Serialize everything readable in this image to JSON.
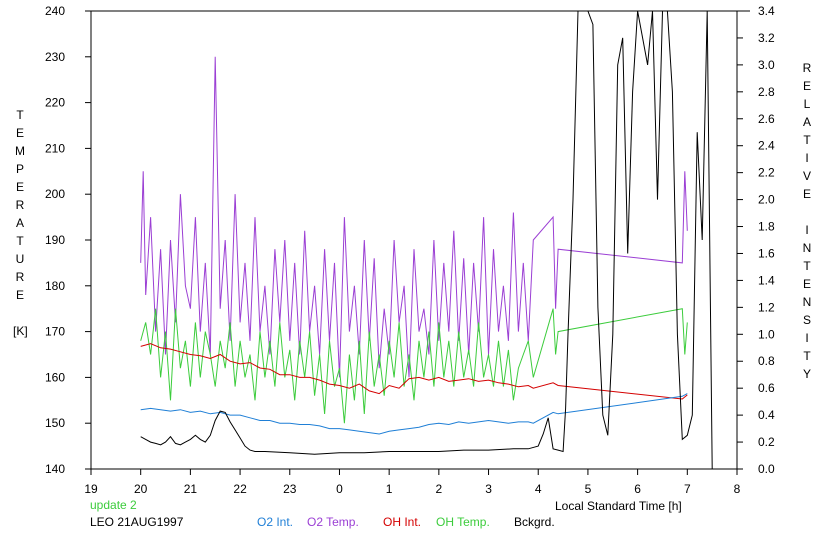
{
  "chart_data": {
    "type": "line",
    "title": "",
    "xlabel": "Local Standard Time [h]",
    "ylabel_left": [
      "T",
      "E",
      "M",
      "P",
      "E",
      "R",
      "A",
      "T",
      "U",
      "R",
      "E",
      "",
      "[K]"
    ],
    "ylabel_right": [
      "R",
      "E",
      "L",
      "A",
      "T",
      "I",
      "V",
      "E",
      "",
      "I",
      "N",
      "T",
      "E",
      "N",
      "S",
      "I",
      "T",
      "Y"
    ],
    "x_ticks": [
      "19",
      "20",
      "21",
      "22",
      "23",
      "0",
      "1",
      "2",
      "3",
      "4",
      "5",
      "6",
      "7",
      "8"
    ],
    "xlim": [
      19,
      32
    ],
    "y_left_ticks": [
      "140",
      "150",
      "160",
      "170",
      "180",
      "190",
      "200",
      "210",
      "220",
      "230",
      "240"
    ],
    "ylim_left": [
      140,
      240
    ],
    "y_right_ticks": [
      "0.0",
      "0.2",
      "0.4",
      "0.6",
      "0.8",
      "1.0",
      "1.2",
      "1.4",
      "1.6",
      "1.8",
      "2.0",
      "2.2",
      "2.4",
      "2.6",
      "2.8",
      "3.0",
      "3.2",
      "3.4"
    ],
    "ylim_right": [
      0,
      3.4
    ],
    "grid": false,
    "footer": {
      "update": "update 2",
      "station": "LEO 21AUG1997",
      "legend": [
        {
          "label": "O2 Int.",
          "color": "#1f7fd6"
        },
        {
          "label": "O2 Temp.",
          "color": "#9b3fd4"
        },
        {
          "label": "OH Int.",
          "color": "#d40000"
        },
        {
          "label": "OH Temp.",
          "color": "#3ccc3c"
        },
        {
          "label": "Bckgrd.",
          "color": "#000000"
        }
      ]
    },
    "series": [
      {
        "name": "O2 Temp.",
        "axis": "left",
        "color": "#9b3fd4",
        "x": [
          20.0,
          20.05,
          20.1,
          20.2,
          20.3,
          20.4,
          20.5,
          20.6,
          20.7,
          20.8,
          20.9,
          21.0,
          21.1,
          21.2,
          21.3,
          21.4,
          21.5,
          21.6,
          21.7,
          21.8,
          21.9,
          22.0,
          22.1,
          22.2,
          22.3,
          22.4,
          22.5,
          22.6,
          22.7,
          22.8,
          22.9,
          23.0,
          23.1,
          23.2,
          23.3,
          23.4,
          23.5,
          23.6,
          23.7,
          23.8,
          23.9,
          24.0,
          24.1,
          24.2,
          24.3,
          24.4,
          24.5,
          24.6,
          24.7,
          24.8,
          24.9,
          25.0,
          25.1,
          25.2,
          25.3,
          25.4,
          25.5,
          25.6,
          25.7,
          25.8,
          25.9,
          26.0,
          26.1,
          26.2,
          26.3,
          26.4,
          26.5,
          26.6,
          26.7,
          26.8,
          26.9,
          27.0,
          27.1,
          27.2,
          27.3,
          27.4,
          27.5,
          27.6,
          27.7,
          27.8,
          27.9,
          28.3,
          28.35,
          28.4,
          30.9,
          30.95,
          31.0
        ],
        "values": [
          185,
          205,
          178,
          195,
          170,
          188,
          165,
          190,
          172,
          200,
          180,
          175,
          195,
          170,
          185,
          165,
          230,
          175,
          190,
          168,
          200,
          172,
          185,
          168,
          195,
          170,
          180,
          165,
          188,
          172,
          190,
          168,
          185,
          165,
          192,
          170,
          180,
          165,
          188,
          168,
          185,
          160,
          195,
          170,
          180,
          165,
          190,
          168,
          186,
          162,
          175,
          165,
          190,
          172,
          180,
          160,
          188,
          170,
          175,
          165,
          190,
          168,
          185,
          170,
          192,
          168,
          186,
          165,
          185,
          170,
          195,
          165,
          188,
          170,
          180,
          168,
          196,
          170,
          185,
          168,
          190,
          195,
          175,
          188,
          185,
          205,
          192
        ]
      },
      {
        "name": "OH Temp.",
        "axis": "left",
        "color": "#3ccc3c",
        "x": [
          20.0,
          20.1,
          20.2,
          20.3,
          20.4,
          20.5,
          20.6,
          20.7,
          20.8,
          20.9,
          21.0,
          21.1,
          21.2,
          21.3,
          21.4,
          21.5,
          21.6,
          21.7,
          21.8,
          21.9,
          22.0,
          22.1,
          22.2,
          22.3,
          22.4,
          22.5,
          22.6,
          22.7,
          22.8,
          22.9,
          23.0,
          23.1,
          23.2,
          23.3,
          23.4,
          23.5,
          23.6,
          23.7,
          23.8,
          23.9,
          24.0,
          24.1,
          24.2,
          24.3,
          24.4,
          24.5,
          24.6,
          24.7,
          24.8,
          24.9,
          25.0,
          25.1,
          25.2,
          25.3,
          25.4,
          25.5,
          25.6,
          25.7,
          25.8,
          25.9,
          26.0,
          26.1,
          26.2,
          26.3,
          26.4,
          26.5,
          26.6,
          26.7,
          26.8,
          26.9,
          27.0,
          27.1,
          27.2,
          27.3,
          27.4,
          27.5,
          27.6,
          27.7,
          27.8,
          27.9,
          28.3,
          28.35,
          28.4,
          30.9,
          30.95,
          31.0
        ],
        "values": [
          168,
          172,
          165,
          175,
          160,
          170,
          155,
          175,
          162,
          168,
          158,
          172,
          160,
          170,
          165,
          158,
          168,
          162,
          172,
          158,
          168,
          160,
          165,
          155,
          170,
          160,
          168,
          158,
          172,
          160,
          166,
          155,
          168,
          160,
          170,
          156,
          165,
          152,
          168,
          158,
          162,
          150,
          165,
          155,
          168,
          152,
          170,
          158,
          165,
          156,
          168,
          160,
          172,
          158,
          165,
          155,
          168,
          160,
          170,
          158,
          172,
          160,
          168,
          158,
          170,
          160,
          166,
          158,
          172,
          160,
          165,
          158,
          168,
          158,
          166,
          155,
          162,
          165,
          168,
          160,
          175,
          165,
          170,
          175,
          165,
          172
        ]
      },
      {
        "name": "OH Int.",
        "axis": "right",
        "color": "#d40000",
        "x": [
          20.0,
          20.2,
          20.4,
          20.6,
          20.8,
          21.0,
          21.2,
          21.4,
          21.6,
          21.8,
          22.0,
          22.2,
          22.4,
          22.6,
          22.8,
          23.0,
          23.2,
          23.4,
          23.6,
          23.8,
          24.0,
          24.2,
          24.4,
          24.6,
          24.8,
          25.0,
          25.2,
          25.4,
          25.6,
          25.8,
          26.0,
          26.2,
          26.4,
          26.6,
          26.8,
          27.0,
          27.2,
          27.4,
          27.6,
          27.8,
          27.9,
          28.3,
          28.4,
          30.9,
          31.0
        ],
        "values": [
          0.91,
          0.93,
          0.9,
          0.89,
          0.87,
          0.85,
          0.84,
          0.82,
          0.85,
          0.8,
          0.78,
          0.79,
          0.75,
          0.74,
          0.7,
          0.7,
          0.68,
          0.68,
          0.66,
          0.63,
          0.62,
          0.6,
          0.63,
          0.58,
          0.56,
          0.62,
          0.6,
          0.67,
          0.68,
          0.66,
          0.68,
          0.65,
          0.66,
          0.67,
          0.65,
          0.66,
          0.64,
          0.63,
          0.61,
          0.62,
          0.6,
          0.64,
          0.62,
          0.52,
          0.55
        ]
      },
      {
        "name": "O2 Int.",
        "axis": "right",
        "color": "#1f7fd6",
        "x": [
          20.0,
          20.2,
          20.4,
          20.6,
          20.8,
          21.0,
          21.2,
          21.4,
          21.6,
          21.8,
          22.0,
          22.2,
          22.4,
          22.6,
          22.8,
          23.0,
          23.2,
          23.4,
          23.6,
          23.8,
          24.0,
          24.2,
          24.4,
          24.6,
          24.8,
          25.0,
          25.2,
          25.4,
          25.6,
          25.8,
          26.0,
          26.2,
          26.4,
          26.6,
          26.8,
          27.0,
          27.2,
          27.4,
          27.6,
          27.8,
          27.9,
          28.3,
          28.4,
          30.9,
          31.0
        ],
        "values": [
          0.44,
          0.45,
          0.44,
          0.43,
          0.44,
          0.42,
          0.43,
          0.41,
          0.42,
          0.4,
          0.4,
          0.38,
          0.36,
          0.36,
          0.34,
          0.34,
          0.33,
          0.33,
          0.32,
          0.3,
          0.3,
          0.29,
          0.28,
          0.27,
          0.26,
          0.28,
          0.29,
          0.3,
          0.31,
          0.33,
          0.34,
          0.33,
          0.35,
          0.34,
          0.35,
          0.36,
          0.35,
          0.34,
          0.35,
          0.35,
          0.34,
          0.42,
          0.41,
          0.54,
          0.56
        ]
      },
      {
        "name": "Bckgrd.",
        "axis": "right",
        "color": "#000000",
        "x": [
          20.0,
          20.1,
          20.2,
          20.3,
          20.4,
          20.5,
          20.6,
          20.7,
          20.8,
          20.9,
          21.0,
          21.1,
          21.2,
          21.3,
          21.4,
          21.5,
          21.6,
          21.7,
          21.8,
          21.9,
          22.0,
          22.1,
          22.2,
          22.3,
          22.5,
          23.0,
          23.5,
          24.0,
          24.5,
          25.0,
          25.5,
          26.0,
          26.5,
          27.0,
          27.5,
          27.8,
          28.0,
          28.1,
          28.2,
          28.3,
          28.4,
          28.5,
          28.55,
          28.6,
          28.7,
          28.8,
          28.9,
          29.0,
          29.1,
          29.2,
          29.3,
          29.4,
          29.5,
          29.6,
          29.7,
          29.8,
          29.9,
          30.0,
          30.1,
          30.2,
          30.3,
          30.4,
          30.5,
          30.6,
          30.7,
          30.8,
          30.9,
          31.0,
          31.1,
          31.2,
          31.3,
          31.4,
          31.5
        ],
        "values": [
          0.24,
          0.22,
          0.2,
          0.19,
          0.18,
          0.2,
          0.24,
          0.19,
          0.18,
          0.2,
          0.22,
          0.25,
          0.22,
          0.2,
          0.25,
          0.36,
          0.43,
          0.42,
          0.35,
          0.29,
          0.23,
          0.17,
          0.14,
          0.13,
          0.13,
          0.12,
          0.11,
          0.12,
          0.12,
          0.13,
          0.13,
          0.13,
          0.14,
          0.14,
          0.15,
          0.15,
          0.17,
          0.26,
          0.38,
          0.15,
          0.14,
          0.13,
          0.45,
          1.0,
          2.0,
          3.4,
          3.4,
          3.4,
          3.3,
          1.2,
          0.4,
          0.25,
          1.0,
          3.0,
          3.2,
          1.6,
          2.8,
          3.4,
          3.2,
          3.0,
          3.4,
          2.0,
          3.4,
          3.4,
          2.8,
          1.0,
          0.22,
          0.25,
          0.4,
          2.5,
          1.7,
          3.4,
          0.0
        ]
      }
    ]
  }
}
